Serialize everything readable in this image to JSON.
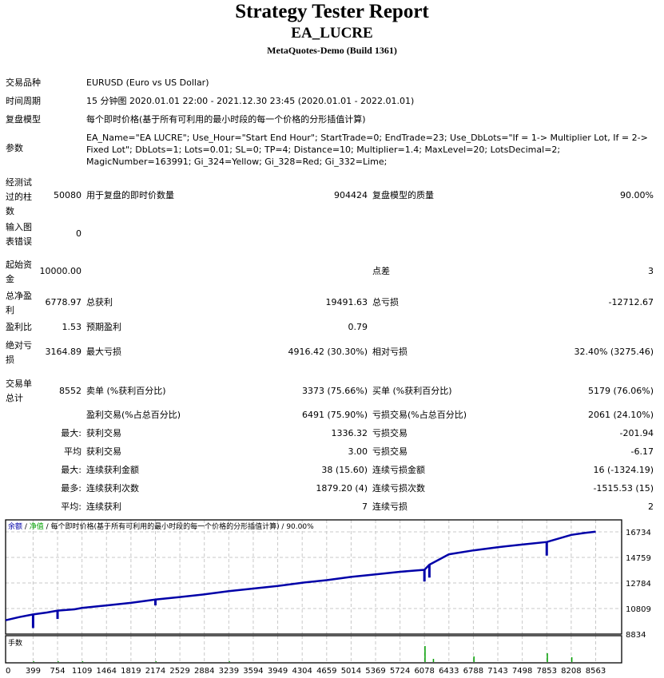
{
  "header": {
    "title": "Strategy Tester Report",
    "ea_name": "EA_LUCRE",
    "server": "MetaQuotes-Demo (Build 1361)"
  },
  "info": {
    "symbol_label": "交易品种",
    "symbol_value": "EURUSD (Euro vs US Dollar)",
    "period_label": "时间周期",
    "period_value": "15 分钟图 2020.01.01 22:00 - 2021.12.30 23:45 (2020.01.01 - 2022.01.01)",
    "model_label": "复盘模型",
    "model_value": "每个即时价格(基于所有可利用的最小时段的每一个价格的分形插值计算)",
    "params_label": "参数",
    "params_value": "EA_Name=\"EA LUCRE\"; Use_Hour=\"Start End Hour\"; StartTrade=0; EndTrade=23; Use_DbLots=\"If = 1-> Multiplier Lot, If = 2-> Fixed Lot\"; DbLots=1; Lots=0.01; SL=0; TP=4; Distance=10; Multiplier=1.4; MaxLevel=20; LotsDecimal=2; MagicNumber=163991; Gi_324=Yellow; Gi_328=Red; Gi_332=Lime;"
  },
  "stats": {
    "bars_label": "经测试过的柱数",
    "bars_value": "50080",
    "ticks_label": "用于复盘的即时价数量",
    "ticks_value": "904424",
    "quality_label": "复盘模型的质量",
    "quality_value": "90.00%",
    "errors_label": "输入图表错误",
    "errors_value": "0",
    "deposit_label": "起始资金",
    "deposit_value": "10000.00",
    "spread_label": "点差",
    "spread_value": "3",
    "net_profit_label": "总净盈利",
    "net_profit_value": "6778.97",
    "gross_profit_label": "总获利",
    "gross_profit_value": "19491.63",
    "gross_loss_label": "总亏损",
    "gross_loss_value": "-12712.67",
    "profit_factor_label": "盈利比",
    "profit_factor_value": "1.53",
    "expected_payoff_label": "预期盈利",
    "expected_payoff_value": "0.79",
    "abs_dd_label": "绝对亏损",
    "abs_dd_value": "3164.89",
    "max_dd_label": "最大亏损",
    "max_dd_value": "4916.42 (30.30%)",
    "rel_dd_label": "相对亏损",
    "rel_dd_value": "32.40% (3275.46)",
    "total_trades_label": "交易单总计",
    "total_trades_value": "8552",
    "short_label": "卖单 (%获利百分比)",
    "short_value": "3373 (75.66%)",
    "long_label": "买单 (%获利百分比)",
    "long_value": "5179 (76.06%)",
    "profit_trades_label": "盈利交易(%占总百分比)",
    "profit_trades_value": "6491 (75.90%)",
    "loss_trades_label": "亏损交易(%占总百分比)",
    "loss_trades_value": "2061 (24.10%)",
    "largest_prefix": "最大:",
    "largest_profit_label": "获利交易",
    "largest_profit_value": "1336.32",
    "largest_loss_label": "亏损交易",
    "largest_loss_value": "-201.94",
    "average_prefix": "平均",
    "avg_profit_label": "获利交易",
    "avg_profit_value": "3.00",
    "avg_loss_label": "亏损交易",
    "avg_loss_value": "-6.17",
    "max_prefix": "最大:",
    "max_consec_wins_label": "连续获利金额",
    "max_consec_wins_value": "38 (15.60)",
    "max_consec_losses_label": "连续亏损金额",
    "max_consec_losses_value": "16 (-1324.19)",
    "most_prefix": "最多:",
    "max_consec_profit_label": "连续获利次数",
    "max_consec_profit_value": "1879.20 (4)",
    "max_consec_loss_label": "连续亏损次数",
    "max_consec_loss_value": "-1515.53 (15)",
    "avg_prefix": "平均:",
    "avg_consec_wins_label": "连续获利",
    "avg_consec_wins_value": "7",
    "avg_consec_losses_label": "连续亏损",
    "avg_consec_losses_value": "2"
  },
  "chart": {
    "legend_balance": "余额",
    "legend_sep1": " / ",
    "legend_equity": "净值",
    "legend_rest": " / 每个即时价格(基于所有可利用的最小时段的每一个价格的分形插值计算) / 90.00%",
    "volume_label": "手数",
    "colors": {
      "balance": "#0000a8",
      "equity": "#00a000",
      "grid": "#c8c8c8"
    }
  },
  "chart_data": {
    "type": "line",
    "title": "余额 / 净值 / 每个即时价格(基于所有可利用的最小时段的每一个价格的分形插值计算) / 90.00%",
    "xlabel": "",
    "ylabel": "",
    "x_ticks": [
      0,
      399,
      754,
      1109,
      1464,
      1819,
      2174,
      2529,
      2884,
      3239,
      3594,
      3949,
      4304,
      4659,
      5014,
      5369,
      5724,
      6078,
      6433,
      6788,
      7143,
      7498,
      7853,
      8208,
      8563
    ],
    "y_ticks": [
      8834,
      10809,
      12784,
      14759,
      16734
    ],
    "ylim": [
      8834,
      17500
    ],
    "grid": true,
    "series": [
      {
        "name": "余额",
        "x": [
          0,
          200,
          399,
          600,
          754,
          1000,
          1109,
          1464,
          1819,
          2174,
          2529,
          2884,
          3239,
          3594,
          3949,
          4304,
          4659,
          5014,
          5369,
          5724,
          6078,
          6150,
          6433,
          6788,
          7143,
          7498,
          7853,
          8208,
          8400,
          8563
        ],
        "values": [
          9900,
          10150,
          10350,
          10500,
          10650,
          10750,
          10850,
          11050,
          11250,
          11500,
          11700,
          11900,
          12150,
          12350,
          12550,
          12800,
          13000,
          13250,
          13450,
          13650,
          13800,
          14200,
          15000,
          15300,
          15550,
          15750,
          15950,
          16500,
          16650,
          16750
        ]
      },
      {
        "name": "净值",
        "x": [
          399,
          754,
          2174,
          6078,
          6150,
          7853
        ],
        "values": [
          9300,
          10000,
          11050,
          12900,
          13200,
          14900
        ]
      },
      {
        "name": "手数",
        "x": [
          399,
          754,
          1109,
          2174,
          3239,
          6078,
          6200,
          6788,
          7853,
          8208
        ],
        "values": [
          0.02,
          0.02,
          0.02,
          0.05,
          0.03,
          1.0,
          0.2,
          0.35,
          0.55,
          0.3
        ]
      }
    ]
  }
}
